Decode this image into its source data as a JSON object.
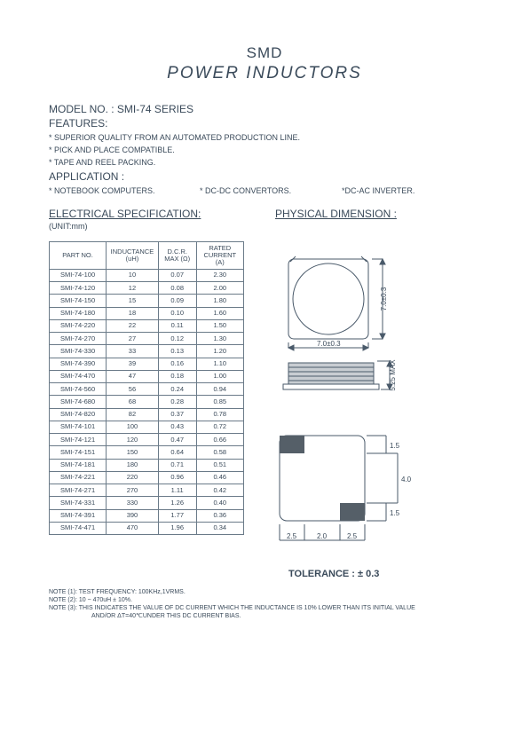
{
  "title_line1": "SMD",
  "title_line2": "POWER   INDUCTORS",
  "model_no_label": "MODEL NO.    :",
  "model_no_value": "SMI-74 SERIES",
  "features_label": "FEATURES:",
  "features": [
    "* SUPERIOR QUALITY FROM AN AUTOMATED PRODUCTION LINE.",
    "* PICK AND PLACE COMPATIBLE.",
    "* TAPE AND REEL PACKING."
  ],
  "application_label": "APPLICATION :",
  "applications": [
    "* NOTEBOOK COMPUTERS.",
    "* DC-DC CONVERTORS.",
    "*DC-AC INVERTER."
  ],
  "elec_spec_header": "ELECTRICAL SPECIFICATION:",
  "phys_dim_header": "PHYSICAL DIMENSION :",
  "unit_label": "(UNIT:mm)",
  "table": {
    "columns": [
      "PART   NO.",
      "INDUCTANCE (uH)",
      "D.C.R. MAX (Ω)",
      "RATED CURRENT (A)"
    ],
    "rows": [
      [
        "SMI-74-100",
        "10",
        "0.07",
        "2.30"
      ],
      [
        "SMI-74-120",
        "12",
        "0.08",
        "2.00"
      ],
      [
        "SMI-74-150",
        "15",
        "0.09",
        "1.80"
      ],
      [
        "SMI-74-180",
        "18",
        "0.10",
        "1.60"
      ],
      [
        "SMI-74-220",
        "22",
        "0.11",
        "1.50"
      ],
      [
        "SMI-74-270",
        "27",
        "0.12",
        "1.30"
      ],
      [
        "SMI-74-330",
        "33",
        "0.13",
        "1.20"
      ],
      [
        "SMI-74-390",
        "39",
        "0.16",
        "1.10"
      ],
      [
        "SMI-74-470",
        "47",
        "0.18",
        "1.00"
      ],
      [
        "SMI-74-560",
        "56",
        "0.24",
        "0.94"
      ],
      [
        "SMI-74-680",
        "68",
        "0.28",
        "0.85"
      ],
      [
        "SMI-74-820",
        "82",
        "0.37",
        "0.78"
      ],
      [
        "SMI-74-101",
        "100",
        "0.43",
        "0.72"
      ],
      [
        "SMI-74-121",
        "120",
        "0.47",
        "0.66"
      ],
      [
        "SMI-74-151",
        "150",
        "0.64",
        "0.58"
      ],
      [
        "SMI-74-181",
        "180",
        "0.71",
        "0.51"
      ],
      [
        "SMI-74-221",
        "220",
        "0.96",
        "0.46"
      ],
      [
        "SMI-74-271",
        "270",
        "1.11",
        "0.42"
      ],
      [
        "SMI-74-331",
        "330",
        "1.26",
        "0.40"
      ],
      [
        "SMI-74-391",
        "390",
        "1.77",
        "0.36"
      ],
      [
        "SMI-74-471",
        "470",
        "1.96",
        "0.34"
      ]
    ]
  },
  "dimensions": {
    "top_width": "7.0±0.3",
    "top_height": "7.0±0.3",
    "side_height": "5.25 MAX",
    "pad_spacing": [
      "2.5",
      "2.0",
      "2.5"
    ],
    "pad_h1": "1.5",
    "pad_gap": "4.0",
    "pad_h2": "1.5"
  },
  "tolerance_label": "TOLERANCE :  ± 0.3",
  "notes": [
    "NOTE (1): TEST FREQUENCY: 100KHz,1VRMS.",
    "NOTE (2): 10 ~ 470uH ± 10%.",
    "NOTE (3): THIS INDICATES THE VALUE OF DC CURRENT WHICH THE INDUCTANCE IS 10% LOWER THAN   ITS INITIAL VALUE",
    "AND/OR  ΔT=40℃UNDER THIS DC CURRENT BIAS."
  ],
  "colors": {
    "text": "#3a4a5a",
    "border": "#6a7a88",
    "diagram_stroke": "#4a5a6a",
    "diagram_fill_dark": "#555f68",
    "diagram_fill_light": "#c8cdd2"
  }
}
